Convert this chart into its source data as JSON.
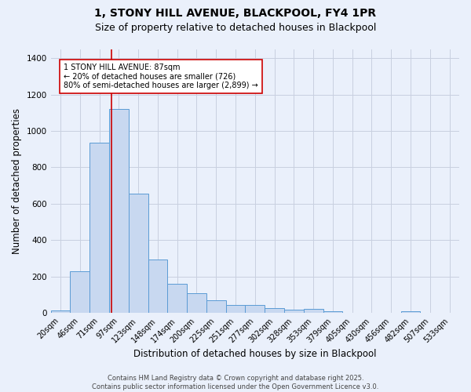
{
  "title": "1, STONY HILL AVENUE, BLACKPOOL, FY4 1PR",
  "subtitle": "Size of property relative to detached houses in Blackpool",
  "xlabel": "Distribution of detached houses by size in Blackpool",
  "ylabel": "Number of detached properties",
  "bar_labels": [
    "20sqm",
    "46sqm",
    "71sqm",
    "97sqm",
    "123sqm",
    "148sqm",
    "174sqm",
    "200sqm",
    "225sqm",
    "251sqm",
    "277sqm",
    "302sqm",
    "328sqm",
    "353sqm",
    "379sqm",
    "405sqm",
    "430sqm",
    "456sqm",
    "482sqm",
    "507sqm",
    "533sqm"
  ],
  "bar_values": [
    15,
    230,
    935,
    1120,
    655,
    295,
    160,
    110,
    68,
    45,
    45,
    25,
    18,
    20,
    10,
    0,
    0,
    0,
    8,
    0,
    0
  ],
  "bar_color": "#c8d8f0",
  "bar_edge_color": "#5b9bd5",
  "vline_color": "#cc0000",
  "annotation_text": "1 STONY HILL AVENUE: 87sqm\n← 20% of detached houses are smaller (726)\n80% of semi-detached houses are larger (2,899) →",
  "annotation_box_color": "#ffffff",
  "annotation_box_edge": "#cc0000",
  "ylim": [
    0,
    1450
  ],
  "yticks": [
    0,
    200,
    400,
    600,
    800,
    1000,
    1200,
    1400
  ],
  "bg_color": "#eaf0fb",
  "plot_bg_color": "#eaf0fb",
  "grid_color": "#c8d0e0",
  "footer_text": "Contains HM Land Registry data © Crown copyright and database right 2025.\nContains public sector information licensed under the Open Government Licence v3.0.",
  "title_fontsize": 10,
  "subtitle_fontsize": 9,
  "tick_fontsize": 7,
  "ylabel_fontsize": 8.5,
  "xlabel_fontsize": 8.5,
  "annotation_fontsize": 7,
  "footer_fontsize": 6
}
